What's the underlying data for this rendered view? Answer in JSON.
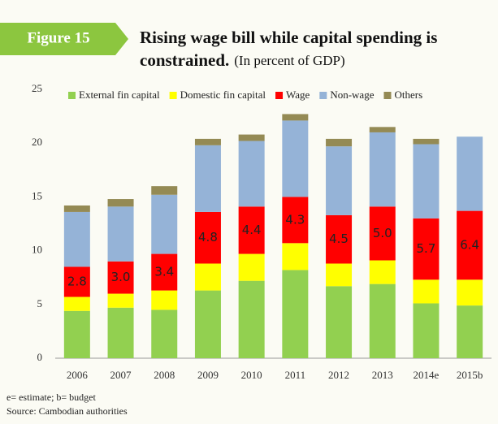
{
  "figure_label": "Figure 15",
  "chart_data": {
    "type": "stacked_bar",
    "title": "Rising wage bill while capital spending is constrained.",
    "subtitle": "(In percent of GDP)",
    "categories": [
      "2006",
      "2007",
      "2008",
      "2009",
      "2010",
      "2011",
      "2012",
      "2013",
      "2014e",
      "2015b"
    ],
    "series": [
      {
        "name": "External fin capital",
        "color": "#92d050",
        "values": [
          4.4,
          4.7,
          4.5,
          6.3,
          7.2,
          8.2,
          6.7,
          6.9,
          5.1,
          4.9
        ]
      },
      {
        "name": "Domestic fin capital",
        "color": "#ffff00",
        "values": [
          1.3,
          1.3,
          1.8,
          2.5,
          2.5,
          2.5,
          2.1,
          2.2,
          2.2,
          2.4
        ]
      },
      {
        "name": "Wage",
        "color": "#ff0000",
        "values": [
          2.8,
          3.0,
          3.4,
          4.8,
          4.4,
          4.3,
          4.5,
          5.0,
          5.7,
          6.4
        ],
        "value_labels": [
          "2.8",
          "3.0",
          "3.4",
          "4.8",
          "4.4",
          "4.3",
          "4.5",
          "5.0",
          "5.7",
          "6.4"
        ]
      },
      {
        "name": "Non-wage",
        "color": "#95b3d7",
        "values": [
          5.1,
          5.1,
          5.5,
          6.2,
          6.1,
          7.1,
          6.4,
          6.9,
          6.9,
          6.9
        ]
      },
      {
        "name": "Others",
        "color": "#948a54",
        "values": [
          0.6,
          0.7,
          0.8,
          0.6,
          0.6,
          0.6,
          0.7,
          0.5,
          0.5,
          null
        ]
      }
    ],
    "ylim": [
      0,
      25
    ],
    "yticks": [
      0,
      5,
      10,
      15,
      20,
      25
    ],
    "grid": false,
    "legend": "top"
  },
  "notes": [
    "e= estimate; b= budget",
    "Source: Cambodian authorities"
  ]
}
